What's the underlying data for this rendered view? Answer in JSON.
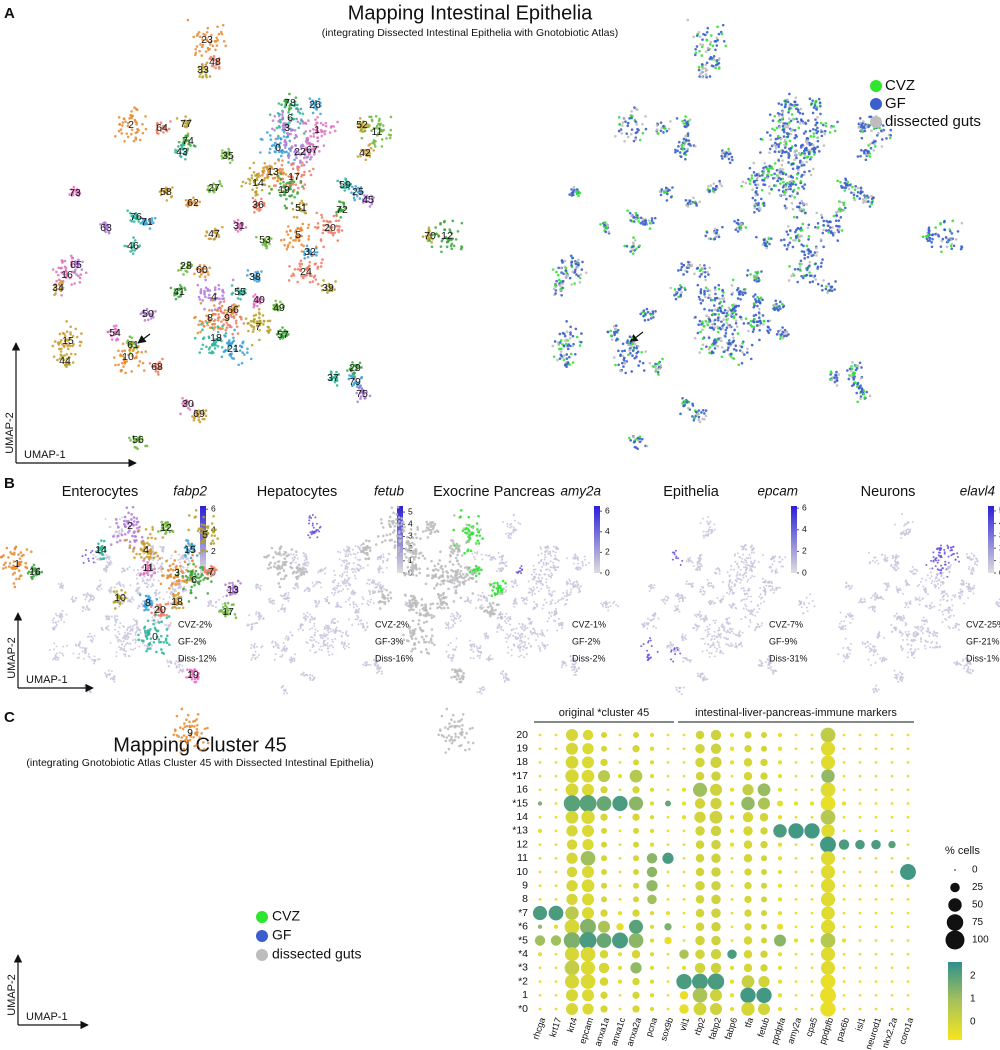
{
  "umap_axes": {
    "x": "UMAP-1",
    "y": "UMAP-2"
  },
  "legend": [
    {
      "name": "CVZ",
      "color": "#2ee62e"
    },
    {
      "name": "GF",
      "color": "#3a5fcd"
    },
    {
      "name": "dissected guts",
      "color": "#bdbdbd"
    }
  ],
  "panel_a": {
    "letter": "A",
    "title": "Mapping Intestinal Epithelia",
    "subtitle": "(integrating Dissected Intestinal Epithelia with Gnotobiotic Atlas)",
    "clusters": [
      "23",
      "48",
      "33",
      "78",
      "6",
      "26",
      "3",
      "1",
      "52",
      "11",
      "2",
      "64",
      "77",
      "74",
      "43",
      "0",
      "22",
      "67",
      "42",
      "35",
      "13",
      "17",
      "14",
      "19",
      "59",
      "25",
      "45",
      "73",
      "58",
      "27",
      "62",
      "36",
      "51",
      "72",
      "76",
      "71",
      "63",
      "31",
      "47",
      "53",
      "5",
      "20",
      "70",
      "12",
      "46",
      "32",
      "65",
      "16",
      "34",
      "28",
      "60",
      "24",
      "39",
      "41",
      "55",
      "38",
      "4",
      "40",
      "66",
      "49",
      "8",
      "9",
      "7",
      "57",
      "18",
      "21",
      "50",
      "54",
      "15",
      "61",
      "10",
      "68",
      "44",
      "29",
      "37",
      "79",
      "75",
      "30",
      "69",
      "56"
    ]
  },
  "panel_b": {
    "letter": "B",
    "plots": [
      {
        "title": "Enterocytes",
        "gene": "fabp2",
        "clim": [
          0,
          6.3
        ],
        "ticks": [
          0,
          2,
          4,
          6
        ],
        "stats": [
          "CVZ-2%",
          "GF-2%",
          "Diss-12%"
        ]
      },
      {
        "title": "Hepatocytes",
        "gene": "fetub",
        "clim": [
          0,
          5.5
        ],
        "ticks": [
          0,
          1,
          2,
          3,
          4,
          5
        ],
        "stats": [
          "CVZ-2%",
          "GF-3%",
          "Diss-16%"
        ]
      },
      {
        "title": "Exocrine Pancreas",
        "gene": "amy2a",
        "clim": [
          0,
          6.5
        ],
        "ticks": [
          0,
          2,
          4,
          6
        ],
        "stats": [
          "CVZ-1%",
          "GF-2%",
          "Diss-2%"
        ]
      },
      {
        "title": "Epithelia",
        "gene": "epcam",
        "clim": [
          0,
          6.2
        ],
        "ticks": [
          0,
          2,
          4,
          6
        ],
        "stats": [
          "CVZ-7%",
          "GF-9%",
          "Diss-31%"
        ]
      },
      {
        "title": "Neurons",
        "gene": "elavl4",
        "clim": [
          0,
          5.4
        ],
        "ticks": [
          0,
          1,
          2,
          3,
          4,
          5
        ],
        "stats": [
          "CVZ-25%",
          "GF-21%",
          "Diss-1%"
        ]
      }
    ]
  },
  "panel_c": {
    "letter": "C",
    "title": "Mapping Cluster 45",
    "subtitle": "(integrating Gnotobiotic Atlas Cluster 45 with Dissected Intestinal Epithelia)",
    "clusters": [
      "1",
      "16",
      "2",
      "12",
      "5",
      "15",
      "4",
      "7",
      "14",
      "11",
      "3",
      "6",
      "13",
      "17",
      "10",
      "8",
      "18",
      "20",
      "0",
      "19",
      "9"
    ]
  },
  "chart_data": {
    "type": "dot",
    "group_labels": [
      "original *cluster 45",
      "intestinal-liver-pancreas-immune markers"
    ],
    "categories": [
      "rhcga",
      "krt17",
      "krt4",
      "epcam",
      "anxa1a",
      "anxa1c",
      "anxa2a",
      "pcna",
      "sox9b",
      "vil1",
      "rbp2",
      "fabp2",
      "fabp6",
      "tfa",
      "fetub",
      "ppdpfa",
      "amy2a",
      "cpa5",
      "ppdpfb",
      "pax6b",
      "isl1",
      "neurod1",
      "nkx2.2a",
      "coro1a"
    ],
    "rows": [
      "20",
      "19",
      "18",
      "*17",
      "16",
      "*15",
      "14",
      "*13",
      "12",
      "11",
      "10",
      "9",
      "8",
      "*7",
      "*6",
      "*5",
      "*4",
      "*3",
      "*2",
      "1",
      "*0"
    ],
    "sizes": [
      [
        2,
        2,
        40,
        30,
        10,
        2,
        10,
        5,
        2,
        2,
        20,
        30,
        5,
        15,
        10,
        5,
        2,
        2,
        60,
        2,
        2,
        2,
        2,
        2
      ],
      [
        2,
        2,
        40,
        35,
        10,
        2,
        15,
        5,
        2,
        2,
        25,
        30,
        5,
        15,
        10,
        5,
        2,
        2,
        55,
        2,
        2,
        2,
        2,
        2
      ],
      [
        2,
        2,
        45,
        40,
        15,
        2,
        10,
        5,
        2,
        2,
        25,
        35,
        5,
        20,
        15,
        5,
        2,
        2,
        55,
        2,
        2,
        2,
        2,
        2
      ],
      [
        2,
        2,
        50,
        45,
        40,
        5,
        45,
        5,
        2,
        2,
        20,
        25,
        2,
        20,
        15,
        5,
        2,
        2,
        50,
        2,
        2,
        2,
        2,
        2
      ],
      [
        2,
        2,
        45,
        40,
        15,
        2,
        15,
        5,
        2,
        5,
        55,
        40,
        5,
        35,
        45,
        5,
        2,
        2,
        60,
        2,
        2,
        2,
        2,
        2
      ],
      [
        5,
        2,
        75,
        80,
        60,
        65,
        55,
        5,
        10,
        5,
        30,
        35,
        5,
        50,
        40,
        10,
        5,
        5,
        60,
        5,
        2,
        2,
        2,
        2
      ],
      [
        2,
        2,
        45,
        50,
        15,
        2,
        15,
        5,
        2,
        5,
        35,
        45,
        5,
        30,
        20,
        5,
        2,
        2,
        60,
        2,
        2,
        2,
        2,
        2
      ],
      [
        5,
        2,
        35,
        40,
        10,
        2,
        10,
        5,
        2,
        2,
        25,
        30,
        5,
        25,
        15,
        50,
        65,
        65,
        50,
        2,
        2,
        2,
        2,
        2
      ],
      [
        2,
        2,
        30,
        35,
        10,
        2,
        10,
        5,
        2,
        2,
        20,
        25,
        5,
        20,
        15,
        5,
        2,
        2,
        70,
        30,
        25,
        25,
        15,
        2
      ],
      [
        2,
        2,
        35,
        60,
        10,
        2,
        10,
        30,
        35,
        2,
        20,
        25,
        2,
        20,
        10,
        5,
        2,
        2,
        55,
        2,
        2,
        2,
        2,
        2
      ],
      [
        2,
        2,
        30,
        40,
        10,
        2,
        10,
        30,
        2,
        2,
        20,
        25,
        2,
        15,
        10,
        5,
        2,
        2,
        55,
        2,
        2,
        2,
        2,
        70
      ],
      [
        2,
        2,
        35,
        45,
        10,
        2,
        10,
        35,
        2,
        2,
        25,
        25,
        2,
        15,
        10,
        5,
        2,
        2,
        55,
        2,
        2,
        2,
        2,
        2
      ],
      [
        2,
        2,
        35,
        40,
        10,
        2,
        10,
        25,
        2,
        2,
        20,
        25,
        2,
        15,
        10,
        5,
        2,
        2,
        55,
        2,
        2,
        2,
        2,
        2
      ],
      [
        55,
        60,
        50,
        40,
        15,
        5,
        15,
        5,
        5,
        2,
        20,
        25,
        2,
        15,
        10,
        5,
        2,
        2,
        50,
        2,
        2,
        2,
        2,
        2
      ],
      [
        5,
        5,
        60,
        70,
        40,
        15,
        55,
        5,
        15,
        2,
        20,
        25,
        2,
        15,
        10,
        10,
        2,
        2,
        55,
        2,
        2,
        2,
        2,
        2
      ],
      [
        30,
        30,
        75,
        80,
        60,
        70,
        60,
        5,
        15,
        2,
        25,
        25,
        2,
        20,
        10,
        40,
        5,
        5,
        60,
        5,
        2,
        2,
        2,
        2
      ],
      [
        5,
        2,
        55,
        60,
        20,
        5,
        20,
        5,
        2,
        25,
        25,
        30,
        25,
        20,
        15,
        5,
        2,
        2,
        55,
        2,
        2,
        2,
        2,
        2
      ],
      [
        2,
        2,
        60,
        55,
        30,
        5,
        35,
        5,
        2,
        5,
        30,
        30,
        5,
        20,
        15,
        5,
        2,
        2,
        55,
        2,
        2,
        2,
        2,
        2
      ],
      [
        2,
        2,
        55,
        60,
        20,
        5,
        15,
        5,
        2,
        65,
        70,
        75,
        5,
        45,
        35,
        5,
        2,
        2,
        60,
        2,
        2,
        2,
        2,
        2
      ],
      [
        2,
        2,
        40,
        40,
        15,
        2,
        15,
        5,
        2,
        20,
        60,
        40,
        5,
        65,
        65,
        5,
        2,
        2,
        70,
        2,
        2,
        2,
        2,
        2
      ],
      [
        2,
        2,
        40,
        35,
        15,
        2,
        15,
        5,
        2,
        25,
        45,
        40,
        5,
        50,
        40,
        5,
        2,
        2,
        65,
        2,
        2,
        2,
        2,
        2
      ]
    ],
    "colors": [
      [
        -0.5,
        -0.5,
        -0.1,
        -0.2,
        -0.1,
        -0.5,
        -0.1,
        -0.3,
        -0.5,
        -0.5,
        0,
        0.1,
        -0.5,
        -0.1,
        0,
        -0.5,
        -0.5,
        -0.5,
        0.4,
        -0.5,
        -0.5,
        -0.5,
        -0.5,
        -0.5
      ],
      [
        -0.5,
        -0.5,
        -0.1,
        -0.2,
        -0.1,
        -0.5,
        -0.1,
        -0.3,
        -0.5,
        -0.5,
        0,
        0.1,
        -0.5,
        -0.1,
        0,
        -0.5,
        -0.5,
        -0.5,
        -0.3,
        -0.5,
        -0.5,
        -0.5,
        -0.5,
        -0.5
      ],
      [
        -0.5,
        -0.5,
        -0.1,
        -0.2,
        -0.1,
        -0.5,
        -0.1,
        -0.3,
        -0.5,
        -0.5,
        0,
        0.1,
        -0.5,
        -0.1,
        0,
        -0.5,
        -0.5,
        -0.5,
        -0.3,
        -0.5,
        -0.5,
        -0.5,
        -0.5,
        -0.5
      ],
      [
        -0.5,
        -0.5,
        -0.1,
        -0.2,
        0.5,
        -0.5,
        0.6,
        -0.3,
        -0.5,
        -0.5,
        0,
        0.1,
        -0.5,
        -0.1,
        0,
        -0.5,
        -0.5,
        -0.5,
        1.2,
        -0.5,
        -0.5,
        -0.5,
        -0.5,
        -0.5
      ],
      [
        -0.5,
        -0.5,
        -0.1,
        -0.2,
        -0.1,
        -0.5,
        -0.1,
        -0.3,
        -0.5,
        -0.5,
        1,
        0.1,
        -0.5,
        0.3,
        1.1,
        -0.5,
        -0.5,
        -0.5,
        -0.3,
        -0.5,
        -0.5,
        -0.5,
        -0.5,
        -0.5
      ],
      [
        1.5,
        -0.5,
        2,
        2,
        1.8,
        2.2,
        1.3,
        -0.3,
        1.8,
        -0.5,
        0,
        0.1,
        -0.5,
        1.2,
        0.8,
        -0.5,
        -0.5,
        -0.5,
        -0.5,
        -0.5,
        -0.5,
        -0.5,
        -0.5,
        -0.5
      ],
      [
        -0.5,
        -0.5,
        -0.1,
        -0.2,
        -0.1,
        -0.5,
        -0.1,
        -0.3,
        -0.5,
        -0.5,
        0,
        0.1,
        -0.5,
        -0.1,
        0,
        -0.5,
        -0.5,
        -0.5,
        0.6,
        -0.5,
        -0.5,
        -0.5,
        -0.5,
        -0.5
      ],
      [
        -0.5,
        -0.5,
        -0.1,
        -0.2,
        -0.1,
        -0.5,
        -0.1,
        -0.3,
        -0.5,
        -0.5,
        0,
        0.1,
        -0.5,
        -0.1,
        0,
        2.2,
        2.3,
        2.3,
        -0.3,
        -0.5,
        -0.5,
        -0.5,
        -0.5,
        -0.5
      ],
      [
        -0.5,
        -0.5,
        -0.1,
        -0.2,
        -0.1,
        -0.5,
        -0.1,
        -0.3,
        -0.5,
        -0.5,
        0,
        0.1,
        -0.5,
        -0.1,
        0,
        -0.5,
        -0.5,
        -0.5,
        2.3,
        2.2,
        2.2,
        2.2,
        2,
        -0.5
      ],
      [
        -0.5,
        -0.5,
        -0.1,
        1,
        -0.1,
        -0.5,
        -0.1,
        1.3,
        2.2,
        -0.5,
        0,
        0.1,
        -0.5,
        -0.1,
        0,
        -0.5,
        -0.5,
        -0.5,
        -0.3,
        -0.5,
        -0.5,
        -0.5,
        -0.5,
        -0.5
      ],
      [
        -0.5,
        -0.5,
        -0.1,
        -0.2,
        -0.1,
        -0.5,
        -0.1,
        1.3,
        -0.5,
        -0.5,
        0,
        0.1,
        -0.5,
        -0.1,
        0,
        -0.5,
        -0.5,
        -0.5,
        -0.3,
        -0.5,
        -0.5,
        -0.5,
        -0.5,
        2.3
      ],
      [
        -0.5,
        -0.5,
        -0.1,
        -0.2,
        -0.1,
        -0.5,
        -0.1,
        1.2,
        -0.5,
        -0.5,
        0,
        0.1,
        -0.5,
        -0.1,
        0,
        -0.5,
        -0.5,
        -0.5,
        -0.3,
        -0.5,
        -0.5,
        -0.5,
        -0.5,
        -0.5
      ],
      [
        -0.5,
        -0.5,
        -0.1,
        -0.2,
        -0.1,
        -0.5,
        -0.1,
        1,
        -0.5,
        -0.5,
        0,
        0.1,
        -0.5,
        -0.1,
        0,
        -0.5,
        -0.5,
        -0.5,
        -0.3,
        -0.5,
        -0.5,
        -0.5,
        -0.5,
        -0.5
      ],
      [
        2.2,
        2.2,
        0.5,
        -0.2,
        -0.1,
        -0.5,
        -0.1,
        -0.3,
        -0.5,
        -0.5,
        0,
        0.1,
        -0.5,
        -0.1,
        0,
        -0.5,
        -0.5,
        -0.5,
        -0.3,
        -0.5,
        -0.5,
        -0.5,
        -0.5,
        -0.5
      ],
      [
        1.2,
        -0.5,
        -0.1,
        1.4,
        0.8,
        -0.5,
        2,
        -0.3,
        1.5,
        -0.5,
        0,
        0.1,
        -0.5,
        -0.1,
        0,
        -0.5,
        -0.5,
        -0.5,
        -0.3,
        -0.5,
        -0.5,
        -0.5,
        -0.5,
        -0.5
      ],
      [
        1,
        1,
        1.5,
        2.2,
        1.8,
        2.2,
        1.3,
        -0.3,
        -0.5,
        -0.5,
        0,
        0.1,
        -0.5,
        -0.1,
        0,
        1.3,
        -0.5,
        -0.5,
        0.6,
        -0.5,
        -0.5,
        -0.5,
        -0.5,
        -0.5
      ],
      [
        -0.5,
        -0.5,
        -0.1,
        -0.2,
        -0.1,
        -0.5,
        -0.1,
        -0.3,
        -0.5,
        0.8,
        0,
        0.1,
        2.2,
        -0.1,
        0,
        -0.5,
        -0.5,
        -0.5,
        -0.3,
        -0.5,
        -0.5,
        -0.5,
        -0.5,
        -0.5
      ],
      [
        -0.5,
        -0.5,
        0.3,
        -0.2,
        -0.1,
        -0.5,
        1.2,
        -0.3,
        -0.5,
        -0.5,
        0,
        0.1,
        -0.5,
        -0.1,
        0,
        -0.5,
        -0.5,
        -0.5,
        -0.3,
        -0.5,
        -0.5,
        -0.5,
        -0.5,
        -0.5
      ],
      [
        -0.5,
        -0.5,
        -0.1,
        -0.2,
        -0.1,
        -0.5,
        -0.1,
        -0.3,
        -0.5,
        2.2,
        2.2,
        2.2,
        -0.5,
        0.2,
        0,
        -0.5,
        -0.5,
        -0.5,
        -0.5,
        -0.5,
        -0.5,
        -0.5,
        -0.5,
        -0.5
      ],
      [
        -0.5,
        -0.5,
        -0.1,
        -0.2,
        -0.1,
        -0.5,
        -0.1,
        -0.3,
        -0.5,
        -0.5,
        0.8,
        0.1,
        -0.5,
        2.3,
        2.3,
        -0.5,
        -0.5,
        -0.5,
        -0.5,
        -0.5,
        -0.5,
        -0.5,
        -0.5,
        -0.5
      ],
      [
        -0.5,
        -0.5,
        -0.1,
        -0.2,
        -0.1,
        -0.5,
        -0.1,
        -0.3,
        -0.5,
        -0.5,
        0,
        0.1,
        -0.5,
        -0.1,
        0,
        -0.5,
        -0.5,
        -0.5,
        -0.5,
        -0.5,
        -0.5,
        -0.5,
        -0.5,
        -0.5
      ]
    ],
    "size_legend_title": "% cells",
    "size_lim": [
      0,
      100
    ],
    "size_ticks": [
      0,
      25,
      50,
      75,
      100
    ],
    "color_lim": [
      -0.8,
      2.6
    ],
    "color_ticks": [
      0,
      1,
      2
    ],
    "color_scale": [
      "#f7e51e",
      "#a7c25a",
      "#2e8f8c"
    ]
  }
}
